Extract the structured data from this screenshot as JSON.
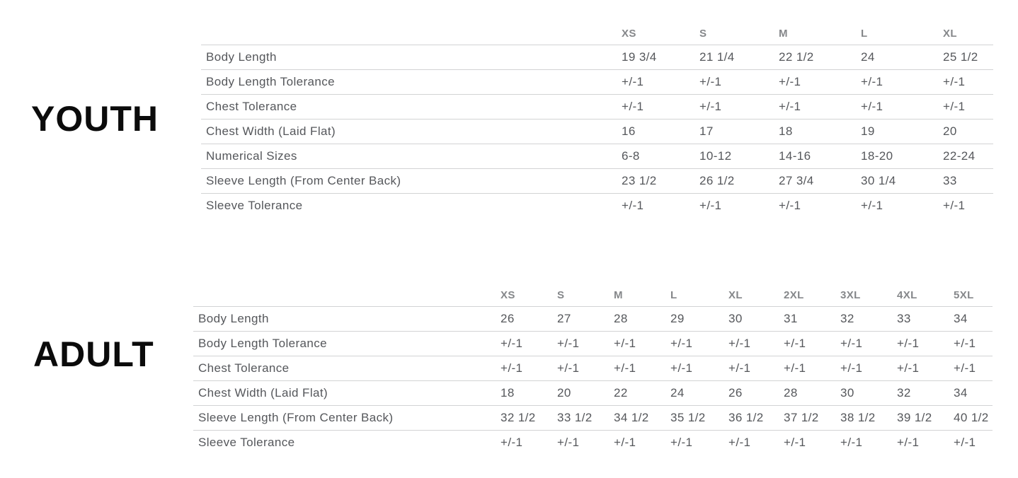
{
  "colors": {
    "section_label_text": "#0b0b0b",
    "column_header_text": "#85878a",
    "cell_text": "#55575b",
    "row_border": "#d2d3d4",
    "background": "#ffffff"
  },
  "sections": [
    {
      "label": "YOUTH",
      "columns": [
        "XS",
        "S",
        "M",
        "L",
        "XL"
      ],
      "rows": [
        {
          "label": "Body Length",
          "values": [
            "19 3/4",
            "21 1/4",
            "22 1/2",
            "24",
            "25 1/2"
          ]
        },
        {
          "label": "Body Length Tolerance",
          "values": [
            "+/-1",
            "+/-1",
            "+/-1",
            "+/-1",
            "+/-1"
          ]
        },
        {
          "label": "Chest Tolerance",
          "values": [
            "+/-1",
            "+/-1",
            "+/-1",
            "+/-1",
            "+/-1"
          ]
        },
        {
          "label": "Chest Width (Laid Flat)",
          "values": [
            "16",
            "17",
            "18",
            "19",
            "20"
          ]
        },
        {
          "label": "Numerical Sizes",
          "values": [
            "6-8",
            "10-12",
            "14-16",
            "18-20",
            "22-24"
          ]
        },
        {
          "label": "Sleeve Length (From Center Back)",
          "values": [
            "23 1/2",
            "26 1/2",
            "27 3/4",
            "30 1/4",
            "33"
          ]
        },
        {
          "label": "Sleeve Tolerance",
          "values": [
            "+/-1",
            "+/-1",
            "+/-1",
            "+/-1",
            "+/-1"
          ]
        }
      ]
    },
    {
      "label": "ADULT",
      "columns": [
        "XS",
        "S",
        "M",
        "L",
        "XL",
        "2XL",
        "3XL",
        "4XL",
        "5XL"
      ],
      "rows": [
        {
          "label": "Body Length",
          "values": [
            "26",
            "27",
            "28",
            "29",
            "30",
            "31",
            "32",
            "33",
            "34"
          ]
        },
        {
          "label": "Body Length Tolerance",
          "values": [
            "+/-1",
            "+/-1",
            "+/-1",
            "+/-1",
            "+/-1",
            "+/-1",
            "+/-1",
            "+/-1",
            "+/-1"
          ]
        },
        {
          "label": "Chest Tolerance",
          "values": [
            "+/-1",
            "+/-1",
            "+/-1",
            "+/-1",
            "+/-1",
            "+/-1",
            "+/-1",
            "+/-1",
            "+/-1"
          ]
        },
        {
          "label": "Chest Width (Laid Flat)",
          "values": [
            "18",
            "20",
            "22",
            "24",
            "26",
            "28",
            "30",
            "32",
            "34"
          ]
        },
        {
          "label": "Sleeve Length (From Center Back)",
          "values": [
            "32 1/2",
            "33 1/2",
            "34 1/2",
            "35 1/2",
            "36 1/2",
            "37 1/2",
            "38 1/2",
            "39 1/2",
            "40 1/2"
          ]
        },
        {
          "label": "Sleeve Tolerance",
          "values": [
            "+/-1",
            "+/-1",
            "+/-1",
            "+/-1",
            "+/-1",
            "+/-1",
            "+/-1",
            "+/-1",
            "+/-1"
          ]
        }
      ]
    }
  ],
  "chart_data": [
    {
      "type": "table",
      "title": "YOUTH",
      "columns": [
        "",
        "XS",
        "S",
        "M",
        "L",
        "XL"
      ],
      "rows": [
        [
          "Body Length",
          "19 3/4",
          "21 1/4",
          "22 1/2",
          "24",
          "25 1/2"
        ],
        [
          "Body Length Tolerance",
          "+/-1",
          "+/-1",
          "+/-1",
          "+/-1",
          "+/-1"
        ],
        [
          "Chest Tolerance",
          "+/-1",
          "+/-1",
          "+/-1",
          "+/-1",
          "+/-1"
        ],
        [
          "Chest Width (Laid Flat)",
          "16",
          "17",
          "18",
          "19",
          "20"
        ],
        [
          "Numerical Sizes",
          "6-8",
          "10-12",
          "14-16",
          "18-20",
          "22-24"
        ],
        [
          "Sleeve Length (From Center Back)",
          "23 1/2",
          "26 1/2",
          "27 3/4",
          "30 1/4",
          "33"
        ],
        [
          "Sleeve Tolerance",
          "+/-1",
          "+/-1",
          "+/-1",
          "+/-1",
          "+/-1"
        ]
      ]
    },
    {
      "type": "table",
      "title": "ADULT",
      "columns": [
        "",
        "XS",
        "S",
        "M",
        "L",
        "XL",
        "2XL",
        "3XL",
        "4XL",
        "5XL"
      ],
      "rows": [
        [
          "Body Length",
          "26",
          "27",
          "28",
          "29",
          "30",
          "31",
          "32",
          "33",
          "34"
        ],
        [
          "Body Length Tolerance",
          "+/-1",
          "+/-1",
          "+/-1",
          "+/-1",
          "+/-1",
          "+/-1",
          "+/-1",
          "+/-1",
          "+/-1"
        ],
        [
          "Chest Tolerance",
          "+/-1",
          "+/-1",
          "+/-1",
          "+/-1",
          "+/-1",
          "+/-1",
          "+/-1",
          "+/-1",
          "+/-1"
        ],
        [
          "Chest Width (Laid Flat)",
          "18",
          "20",
          "22",
          "24",
          "26",
          "28",
          "30",
          "32",
          "34"
        ],
        [
          "Sleeve Length (From Center Back)",
          "32 1/2",
          "33 1/2",
          "34 1/2",
          "35 1/2",
          "36 1/2",
          "37 1/2",
          "38 1/2",
          "39 1/2",
          "40 1/2"
        ],
        [
          "Sleeve Tolerance",
          "+/-1",
          "+/-1",
          "+/-1",
          "+/-1",
          "+/-1",
          "+/-1",
          "+/-1",
          "+/-1",
          "+/-1"
        ]
      ]
    }
  ]
}
